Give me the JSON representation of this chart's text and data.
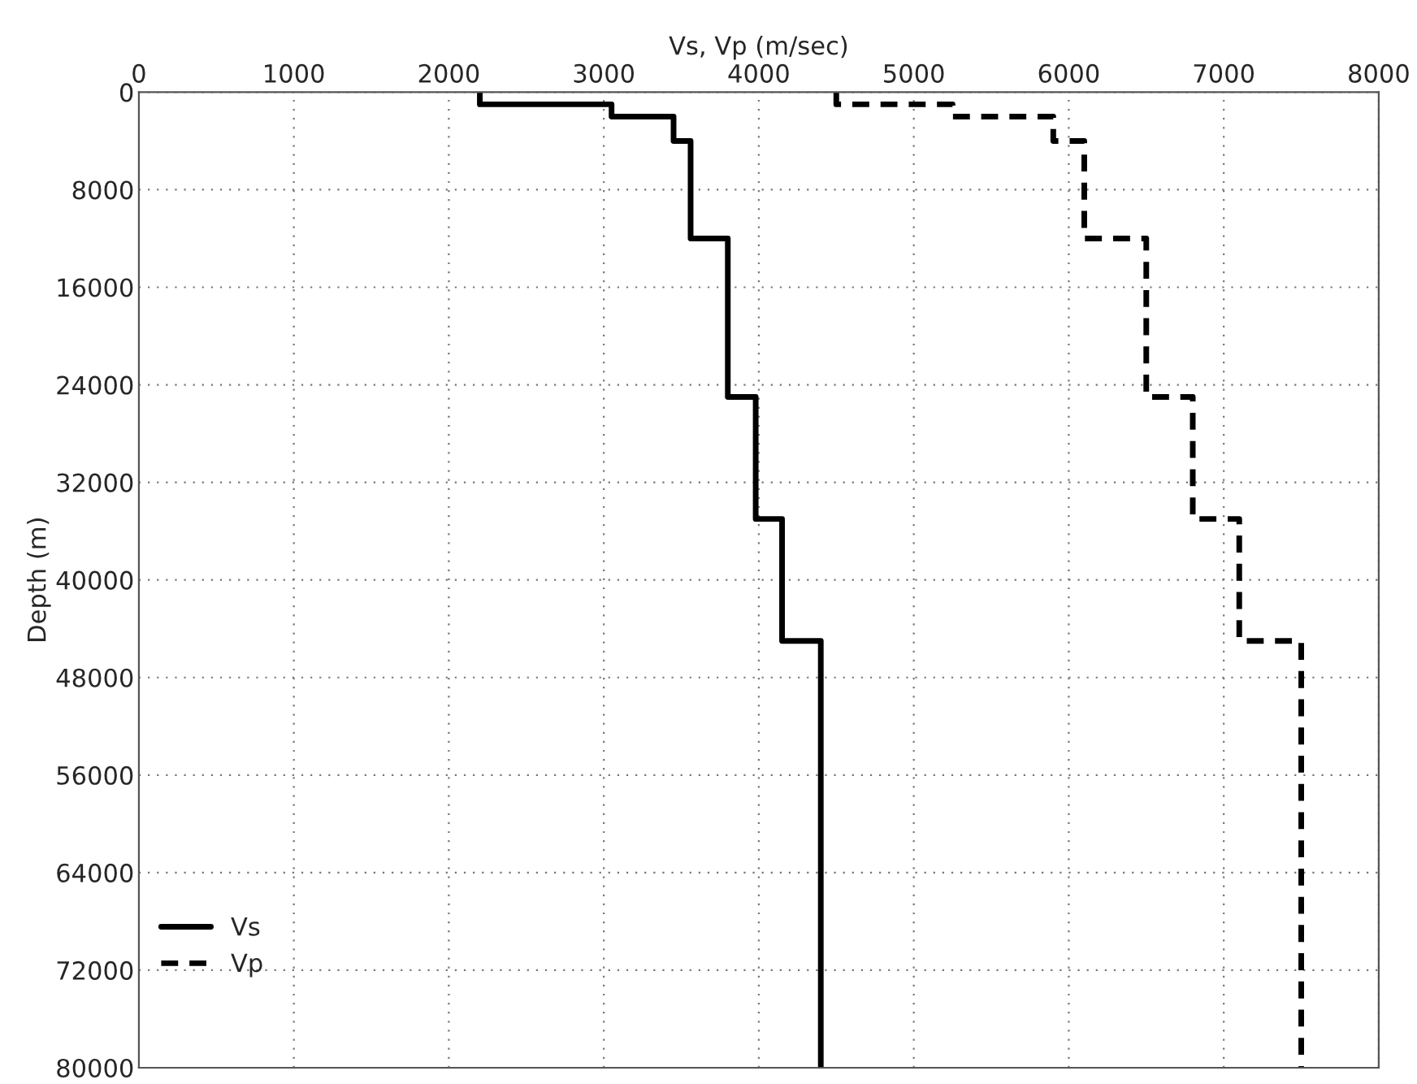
{
  "chart_data": {
    "type": "line",
    "xlabel": "Vs, Vp (m/sec)",
    "ylabel": "Depth (m)",
    "xlim": [
      0,
      8000
    ],
    "xticks": [
      0,
      1000,
      2000,
      3000,
      4000,
      5000,
      6000,
      7000,
      8000
    ],
    "ylim": [
      80000,
      0
    ],
    "yticks": [
      0,
      8000,
      16000,
      24000,
      32000,
      40000,
      48000,
      56000,
      64000,
      72000,
      80000
    ],
    "grid": true,
    "legend": "bottom left",
    "series": [
      {
        "name": "Vs",
        "color": "#000000",
        "line_style": "solid",
        "x": [
          2200,
          2200,
          3050,
          3050,
          3450,
          3450,
          3560,
          3560,
          3800,
          3800,
          3980,
          3980,
          4150,
          4150,
          4400,
          4400
        ],
        "values": [
          0,
          1000,
          1000,
          2000,
          2000,
          4000,
          4000,
          12000,
          12000,
          25000,
          25000,
          35000,
          35000,
          45000,
          45000,
          80000
        ]
      },
      {
        "name": "Vp",
        "color": "#000000",
        "line_style": "dashed",
        "x": [
          4500,
          4500,
          5250,
          5250,
          5900,
          5900,
          6100,
          6100,
          6500,
          6500,
          6800,
          6800,
          7100,
          7100,
          7500,
          7500
        ],
        "values": [
          0,
          1000,
          1000,
          2000,
          2000,
          4000,
          4000,
          12000,
          12000,
          25000,
          25000,
          35000,
          35000,
          45000,
          45000,
          80000
        ]
      }
    ]
  }
}
